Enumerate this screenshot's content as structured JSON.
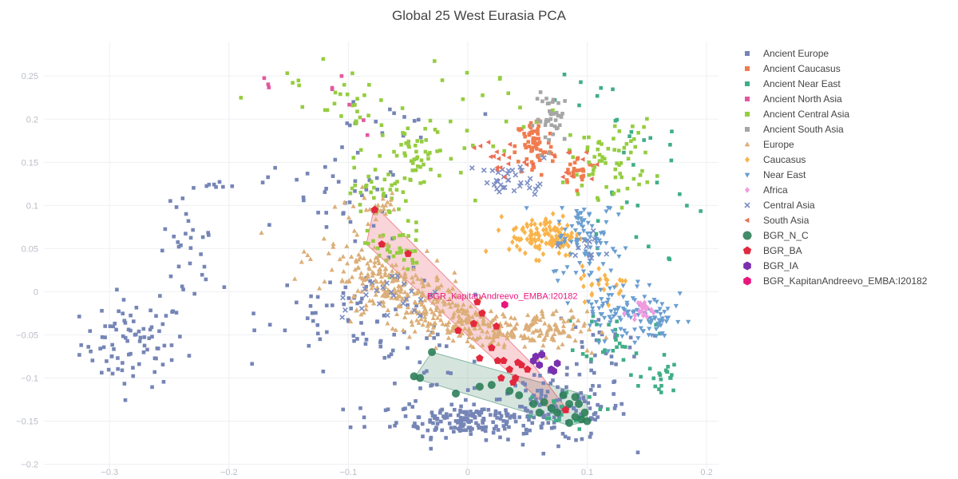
{
  "chart_data": {
    "type": "scatter",
    "title": "Global 25 West Eurasia PCA",
    "xlim": [
      -0.355,
      0.21
    ],
    "ylim": [
      -0.205,
      0.29
    ],
    "x_ticks": [
      -0.3,
      -0.2,
      -0.1,
      0,
      0.1,
      0.2
    ],
    "x_tick_labels": [
      "−0.3",
      "−0.2",
      "−0.1",
      "0",
      "0.1",
      "0.2"
    ],
    "y_ticks": [
      -0.2,
      -0.15,
      -0.1,
      -0.05,
      0,
      0.05,
      0.1,
      0.15,
      0.2,
      0.25
    ],
    "y_tick_labels": [
      "−0.2",
      "−0.15",
      "−0.1",
      "−0.05",
      "0",
      "0.05",
      "0.1",
      "0.15",
      "0.2",
      "0.25"
    ],
    "grid": true,
    "legend_position": "right",
    "annotation": {
      "text": "BGR_KapitanAndreevo_EMBA:I20182",
      "x": 0.031,
      "y": -0.015,
      "color": "#e8177d"
    },
    "series": [
      {
        "name": "Ancient Europe",
        "color": "#7585b6",
        "symbol": "square",
        "clusters": [
          {
            "cx": -0.28,
            "cy": -0.06,
            "sx": 0.022,
            "sy": 0.025,
            "n": 85
          },
          {
            "cx": -0.235,
            "cy": 0.04,
            "sx": 0.012,
            "sy": 0.03,
            "n": 28
          },
          {
            "cx": -0.22,
            "cy": 0.125,
            "sx": 0.012,
            "sy": 0.012,
            "n": 9
          },
          {
            "cx": 0.0,
            "cy": -0.148,
            "sx": 0.03,
            "sy": 0.01,
            "n": 160
          },
          {
            "cx": 0.075,
            "cy": -0.135,
            "sx": 0.03,
            "sy": 0.02,
            "n": 120
          },
          {
            "cx": -0.1,
            "cy": 0.1,
            "sx": 0.025,
            "sy": 0.025,
            "n": 35
          },
          {
            "cx": -0.09,
            "cy": -0.02,
            "sx": 0.04,
            "sy": 0.025,
            "n": 60
          },
          {
            "cx": -0.04,
            "cy": -0.095,
            "sx": 0.035,
            "sy": 0.03,
            "n": 40
          },
          {
            "cx": -0.08,
            "cy": 0.19,
            "sx": 0.03,
            "sy": 0.02,
            "n": 15
          },
          {
            "cx": -0.16,
            "cy": 0.135,
            "sx": 0.01,
            "sy": 0.005,
            "n": 4
          },
          {
            "cx": 0.11,
            "cy": -0.06,
            "sx": 0.02,
            "sy": 0.02,
            "n": 25
          }
        ]
      },
      {
        "name": "Ancient Caucasus",
        "color": "#f07c4f",
        "symbol": "square",
        "clusters": [
          {
            "cx": 0.056,
            "cy": 0.168,
            "sx": 0.008,
            "sy": 0.018,
            "n": 70
          },
          {
            "cx": 0.093,
            "cy": 0.14,
            "sx": 0.008,
            "sy": 0.008,
            "n": 25
          }
        ]
      },
      {
        "name": "Ancient Near East",
        "color": "#3fae86",
        "symbol": "square",
        "clusters": [
          {
            "cx": 0.16,
            "cy": -0.1,
            "sx": 0.008,
            "sy": 0.015,
            "n": 22
          },
          {
            "cx": 0.125,
            "cy": -0.05,
            "sx": 0.015,
            "sy": 0.015,
            "n": 25
          },
          {
            "cx": 0.14,
            "cy": 0.12,
            "sx": 0.03,
            "sy": 0.06,
            "n": 25
          },
          {
            "cx": 0.07,
            "cy": -0.14,
            "sx": 0.02,
            "sy": 0.01,
            "n": 20
          },
          {
            "cx": 0.09,
            "cy": 0.22,
            "sx": 0.02,
            "sy": 0.03,
            "n": 8
          }
        ]
      },
      {
        "name": "Ancient North Asia",
        "color": "#e4579f",
        "symbol": "square",
        "clusters": [
          {
            "cx": -0.168,
            "cy": 0.24,
            "sx": 0.002,
            "sy": 0.005,
            "n": 3
          },
          {
            "cx": -0.11,
            "cy": 0.235,
            "sx": 0.01,
            "sy": 0.01,
            "n": 4
          },
          {
            "cx": -0.09,
            "cy": 0.2,
            "sx": 0.004,
            "sy": 0.01,
            "n": 2
          }
        ]
      },
      {
        "name": "Ancient Central Asia",
        "color": "#95cd40",
        "symbol": "square",
        "clusters": [
          {
            "cx": -0.075,
            "cy": 0.115,
            "sx": 0.012,
            "sy": 0.015,
            "n": 35
          },
          {
            "cx": -0.06,
            "cy": 0.05,
            "sx": 0.012,
            "sy": 0.015,
            "n": 40
          },
          {
            "cx": -0.04,
            "cy": 0.155,
            "sx": 0.015,
            "sy": 0.018,
            "n": 45
          },
          {
            "cx": 0.12,
            "cy": 0.155,
            "sx": 0.018,
            "sy": 0.022,
            "n": 65
          },
          {
            "cx": -0.1,
            "cy": 0.215,
            "sx": 0.03,
            "sy": 0.025,
            "n": 30
          },
          {
            "cx": 0.02,
            "cy": 0.2,
            "sx": 0.03,
            "sy": 0.03,
            "n": 20
          },
          {
            "cx": -0.15,
            "cy": 0.245,
            "sx": 0.005,
            "sy": 0.005,
            "n": 4
          }
        ]
      },
      {
        "name": "Ancient South Asia",
        "color": "#a6a6a6",
        "symbol": "square",
        "clusters": [
          {
            "cx": 0.072,
            "cy": 0.2,
            "sx": 0.008,
            "sy": 0.015,
            "n": 40
          }
        ]
      },
      {
        "name": "Europe",
        "color": "#dcae78",
        "symbol": "triangle-up",
        "clusters": [
          {
            "cx": -0.06,
            "cy": 0.003,
            "sx": 0.03,
            "sy": 0.02,
            "n": 250,
            "trend": -0.55
          },
          {
            "cx": 0.0,
            "cy": -0.035,
            "sx": 0.035,
            "sy": 0.012,
            "n": 200,
            "trend": -0.3
          },
          {
            "cx": 0.06,
            "cy": -0.043,
            "sx": 0.02,
            "sy": 0.01,
            "n": 80
          },
          {
            "cx": -0.075,
            "cy": 0.1,
            "sx": 0.015,
            "sy": 0.01,
            "n": 25
          }
        ]
      },
      {
        "name": "Caucasus",
        "color": "#f9b44c",
        "symbol": "diamond",
        "clusters": [
          {
            "cx": 0.065,
            "cy": 0.065,
            "sx": 0.015,
            "sy": 0.012,
            "n": 120
          },
          {
            "cx": 0.115,
            "cy": 0.01,
            "sx": 0.01,
            "sy": 0.01,
            "n": 25
          }
        ]
      },
      {
        "name": "Near East",
        "color": "#6a9ed0",
        "symbol": "triangle-down",
        "clusters": [
          {
            "cx": 0.1,
            "cy": 0.055,
            "sx": 0.015,
            "sy": 0.02,
            "n": 70
          },
          {
            "cx": 0.13,
            "cy": -0.02,
            "sx": 0.02,
            "sy": 0.018,
            "n": 90
          },
          {
            "cx": 0.155,
            "cy": -0.035,
            "sx": 0.01,
            "sy": 0.01,
            "n": 30
          },
          {
            "cx": 0.1,
            "cy": 0.09,
            "sx": 0.01,
            "sy": 0.01,
            "n": 15
          }
        ]
      },
      {
        "name": "Africa",
        "color": "#f19bdf",
        "symbol": "diamond",
        "clusters": [
          {
            "cx": 0.145,
            "cy": -0.02,
            "sx": 0.005,
            "sy": 0.004,
            "n": 20
          }
        ]
      },
      {
        "name": "Central Asia",
        "color": "#7b8ec4",
        "symbol": "x",
        "clusters": [
          {
            "cx": 0.04,
            "cy": 0.128,
            "sx": 0.015,
            "sy": 0.01,
            "n": 35
          },
          {
            "cx": -0.065,
            "cy": -0.005,
            "sx": 0.02,
            "sy": 0.015,
            "n": 25
          },
          {
            "cx": 0.1,
            "cy": 0.05,
            "sx": 0.01,
            "sy": 0.01,
            "n": 12
          }
        ]
      },
      {
        "name": "South Asia",
        "color": "#ec6e55",
        "symbol": "triangle-left",
        "clusters": [
          {
            "cx": 0.025,
            "cy": 0.155,
            "sx": 0.012,
            "sy": 0.012,
            "n": 18
          },
          {
            "cx": 0.09,
            "cy": 0.145,
            "sx": 0.01,
            "sy": 0.01,
            "n": 10
          }
        ]
      },
      {
        "name": "BGR_N_C",
        "color": "#2e7f5a",
        "symbol": "circle",
        "size": 9,
        "points": [
          [
            -0.045,
            -0.098
          ],
          [
            -0.04,
            -0.1
          ],
          [
            -0.03,
            -0.07
          ],
          [
            -0.01,
            -0.118
          ],
          [
            0.01,
            -0.11
          ],
          [
            0.02,
            -0.108
          ],
          [
            0.035,
            -0.115
          ],
          [
            0.043,
            -0.12
          ],
          [
            0.055,
            -0.13
          ],
          [
            0.06,
            -0.14
          ],
          [
            0.064,
            -0.128
          ],
          [
            0.07,
            -0.135
          ],
          [
            0.075,
            -0.14
          ],
          [
            0.08,
            -0.12
          ],
          [
            0.085,
            -0.13
          ],
          [
            0.09,
            -0.145
          ],
          [
            0.093,
            -0.13
          ],
          [
            0.09,
            -0.122
          ],
          [
            0.095,
            -0.148
          ],
          [
            0.098,
            -0.14
          ],
          [
            0.085,
            -0.152
          ],
          [
            0.1,
            -0.15
          ]
        ],
        "hull": [
          [
            -0.045,
            -0.1
          ],
          [
            -0.03,
            -0.07
          ],
          [
            0.1,
            -0.12
          ],
          [
            0.1,
            -0.15
          ],
          [
            0.085,
            -0.155
          ]
        ]
      },
      {
        "name": "BGR_BA",
        "color": "#e3273d",
        "symbol": "pentagon",
        "size": 9,
        "points": [
          [
            -0.078,
            0.095
          ],
          [
            -0.072,
            0.055
          ],
          [
            -0.05,
            0.044
          ],
          [
            -0.008,
            -0.045
          ],
          [
            0.005,
            -0.037
          ],
          [
            0.008,
            -0.012
          ],
          [
            0.012,
            -0.025
          ],
          [
            0.02,
            -0.065
          ],
          [
            0.025,
            -0.08
          ],
          [
            0.03,
            -0.08
          ],
          [
            0.035,
            -0.09
          ],
          [
            0.028,
            -0.1
          ],
          [
            0.04,
            -0.1
          ],
          [
            0.042,
            -0.082
          ],
          [
            0.038,
            -0.105
          ],
          [
            0.045,
            -0.085
          ],
          [
            0.024,
            -0.04
          ],
          [
            0.082,
            -0.137
          ],
          [
            0.01,
            -0.077
          ],
          [
            0.05,
            -0.09
          ]
        ],
        "hull": [
          [
            -0.078,
            0.1
          ],
          [
            0.055,
            -0.085
          ],
          [
            0.085,
            -0.14
          ],
          [
            0.072,
            -0.14
          ],
          [
            -0.085,
            0.055
          ]
        ]
      },
      {
        "name": "BGR_IA",
        "color": "#7a2fb0",
        "symbol": "hexagon",
        "size": 9,
        "points": [
          [
            0.057,
            -0.075
          ],
          [
            0.062,
            -0.073
          ],
          [
            0.06,
            -0.085
          ],
          [
            0.07,
            -0.09
          ],
          [
            0.075,
            -0.083
          ],
          [
            0.072,
            -0.092
          ],
          [
            0.055,
            -0.08
          ]
        ]
      },
      {
        "name": "BGR_KapitanAndreevo_EMBA:I20182",
        "color": "#e8177d",
        "symbol": "hexagon",
        "size": 9,
        "points": [
          [
            0.031,
            -0.015
          ]
        ]
      }
    ]
  }
}
